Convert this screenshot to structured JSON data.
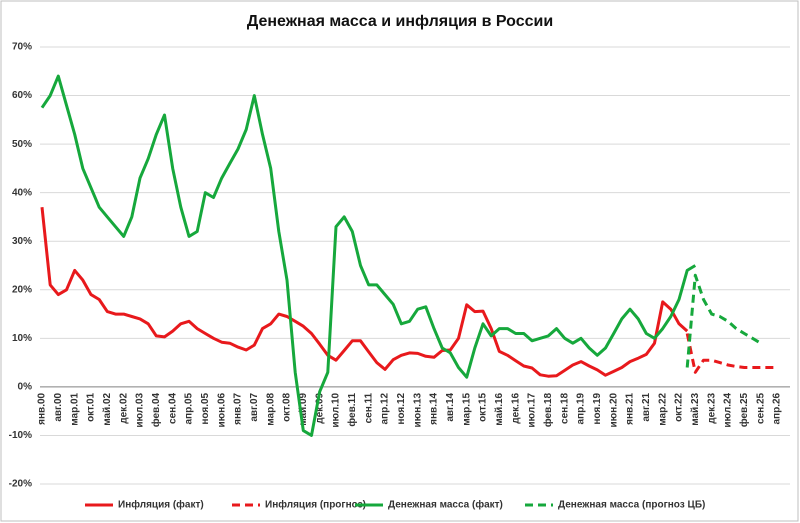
{
  "chart_data": {
    "type": "line",
    "title": "Денежная масса и инфляция в России",
    "categories": [
      "янв.00",
      null,
      "авг.00",
      null,
      "мар.01",
      null,
      "окт.01",
      null,
      "май.02",
      null,
      "дек.02",
      null,
      "июл.03",
      null,
      "фев.04",
      null,
      "сен.04",
      null,
      "апр.05",
      null,
      "ноя.05",
      null,
      "июн.06",
      null,
      "янв.07",
      null,
      "авг.07",
      null,
      "мар.08",
      null,
      "окт.08",
      null,
      "май.09",
      null,
      "дек.09",
      null,
      "июл.10",
      null,
      "фев.11",
      null,
      "сен.11",
      null,
      "апр.12",
      null,
      "ноя.12",
      null,
      "июн.13",
      null,
      "янв.14",
      null,
      "авг.14",
      null,
      "мар.15",
      null,
      "окт.15",
      null,
      "май.16",
      null,
      "дек.16",
      null,
      "июл.17",
      null,
      "фев.18",
      null,
      "сен.18",
      null,
      "апр.19",
      null,
      "ноя.19",
      null,
      "июн.20",
      null,
      "янв.21",
      null,
      "авг.21",
      null,
      "мар.22",
      null,
      "окт.22",
      null,
      "май.23",
      null,
      "дек.23",
      null,
      "июл.24",
      null,
      "фев.25",
      null,
      "сен.25",
      null,
      "апр.26"
    ],
    "series": [
      {
        "name": "Инфляция (факт)",
        "color": "#e8191c",
        "dash": false,
        "values": [
          37,
          21,
          19,
          20,
          24,
          22,
          19,
          18,
          15.5,
          15,
          15,
          14.5,
          14,
          13,
          10.5,
          10.3,
          11.5,
          13,
          13.5,
          12,
          11,
          10,
          9.2,
          9,
          8.2,
          7.6,
          8.6,
          12,
          13,
          15,
          14.5,
          13.5,
          12.5,
          11,
          8.8,
          6.5,
          5.5,
          7.5,
          9.5,
          9.5,
          7.2,
          5,
          3.6,
          5.6,
          6.5,
          7,
          6.9,
          6.3,
          6.1,
          7.5,
          7.6,
          10,
          16.9,
          15.5,
          15.6,
          12,
          7.3,
          6.5,
          5.4,
          4.3,
          3.9,
          2.5,
          2.2,
          2.3,
          3.4,
          4.5,
          5.2,
          4.3,
          3.5,
          2.4,
          3.2,
          4,
          5.2,
          5.9,
          6.7,
          9,
          17.5,
          16,
          13,
          11.5,
          null,
          null,
          null,
          null,
          null,
          null,
          null,
          null,
          null,
          null,
          null
        ]
      },
      {
        "name": "Инфляция (прогноз)",
        "color": "#e8191c",
        "dash": true,
        "values": [
          null,
          null,
          null,
          null,
          null,
          null,
          null,
          null,
          null,
          null,
          null,
          null,
          null,
          null,
          null,
          null,
          null,
          null,
          null,
          null,
          null,
          null,
          null,
          null,
          null,
          null,
          null,
          null,
          null,
          null,
          null,
          null,
          null,
          null,
          null,
          null,
          null,
          null,
          null,
          null,
          null,
          null,
          null,
          null,
          null,
          null,
          null,
          null,
          null,
          null,
          null,
          null,
          null,
          null,
          null,
          null,
          null,
          null,
          null,
          null,
          null,
          null,
          null,
          null,
          null,
          null,
          null,
          null,
          null,
          null,
          null,
          null,
          null,
          null,
          null,
          null,
          null,
          null,
          null,
          11,
          3,
          5.5,
          5.5,
          5,
          4.5,
          4.2,
          4,
          4,
          4,
          4,
          4
        ]
      },
      {
        "name": "Денежная масса (факт)",
        "color": "#16a83c",
        "dash": false,
        "values": [
          57.5,
          60,
          64,
          58,
          52,
          45,
          41,
          37,
          35,
          33,
          31,
          35,
          43,
          47,
          52,
          56,
          45,
          37,
          31,
          32,
          40,
          39,
          43,
          46,
          49,
          53,
          60,
          52,
          45,
          32,
          22,
          3,
          -9,
          -10,
          -1,
          3,
          33,
          35,
          32,
          25,
          21,
          21,
          19,
          17,
          13,
          13.5,
          16,
          16.5,
          12,
          8,
          7,
          4,
          2,
          8,
          13,
          10.5,
          12,
          12,
          11,
          11,
          9.5,
          10,
          10.5,
          12,
          10,
          9,
          10,
          8,
          6.5,
          8,
          11,
          14,
          16,
          14,
          11,
          10,
          12,
          14.5,
          18,
          24,
          25,
          null,
          null,
          null,
          null,
          null,
          null,
          null,
          null,
          null,
          null
        ]
      },
      {
        "name": "Денежная масса (прогноз ЦБ)",
        "color": "#16a83c",
        "dash": true,
        "values": [
          null,
          null,
          null,
          null,
          null,
          null,
          null,
          null,
          null,
          null,
          null,
          null,
          null,
          null,
          null,
          null,
          null,
          null,
          null,
          null,
          null,
          null,
          null,
          null,
          null,
          null,
          null,
          null,
          null,
          null,
          null,
          null,
          null,
          null,
          null,
          null,
          null,
          null,
          null,
          null,
          null,
          null,
          null,
          null,
          null,
          null,
          null,
          null,
          null,
          null,
          null,
          null,
          null,
          null,
          null,
          null,
          null,
          null,
          null,
          null,
          null,
          null,
          null,
          null,
          null,
          null,
          null,
          null,
          null,
          null,
          null,
          null,
          null,
          null,
          null,
          null,
          null,
          null,
          null,
          4,
          23,
          18,
          15,
          14.5,
          13.5,
          12,
          11,
          10,
          9,
          null,
          null
        ]
      }
    ],
    "ylim": [
      -20,
      70
    ],
    "yticks": [
      {
        "value": -20,
        "label": "-20%"
      },
      {
        "value": -10,
        "label": "-10%"
      },
      {
        "value": 0,
        "label": "0%"
      },
      {
        "value": 10,
        "label": "10%"
      },
      {
        "value": 20,
        "label": "20%"
      },
      {
        "value": 30,
        "label": "30%"
      },
      {
        "value": 40,
        "label": "40%"
      },
      {
        "value": 50,
        "label": "50%"
      },
      {
        "value": 60,
        "label": "60%"
      },
      {
        "value": 70,
        "label": "70%"
      }
    ],
    "grid": true
  }
}
